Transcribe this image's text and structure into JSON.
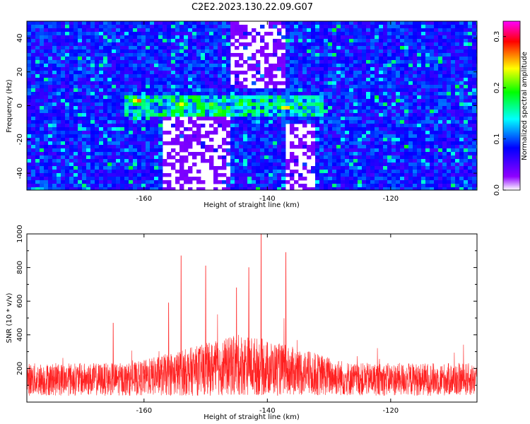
{
  "title": "C2E2.2023.130.22.09.G07",
  "chart_data": [
    {
      "type": "heatmap",
      "xlabel": "Height of straight line (km)",
      "ylabel": "Frequency (Hz)",
      "xlim": [
        -179,
        -106
      ],
      "ylim": [
        -50,
        50
      ],
      "xticks": [
        -160,
        -140,
        -120
      ],
      "yticks": [
        -40,
        -20,
        0,
        20,
        40
      ],
      "grid": false,
      "colorbar": {
        "label": "Normalized spectral amplitude",
        "range": [
          0,
          0.33
        ],
        "ticks": [
          "0.0",
          "0.1",
          "0.2",
          "0.3"
        ],
        "colors": [
          "#ffffff",
          "#8f00ff",
          "#0000ff",
          "#00ffff",
          "#00ff00",
          "#ffff00",
          "#ff0000",
          "#ff00ff"
        ]
      },
      "band": {
        "center_hz": 0,
        "half_width_hz": 5,
        "x_range": [
          -163,
          -131
        ]
      },
      "hot_spots": [
        {
          "x": -161,
          "y": 3,
          "value": 0.3
        },
        {
          "x": -154,
          "y": 0,
          "value": 0.32
        },
        {
          "x": -149,
          "y": 0,
          "value": 0.28
        },
        {
          "x": -137,
          "y": -1,
          "value": 0.29
        }
      ]
    },
    {
      "type": "line",
      "xlabel": "Height of straight line (km)",
      "ylabel": "SNR (10 * v/v)",
      "xlim": [
        -179,
        -106
      ],
      "ylim": [
        0,
        1000
      ],
      "xticks": [
        -160,
        -140,
        -120
      ],
      "yticks": [
        200,
        400,
        600,
        800,
        1000
      ],
      "grid": false,
      "series": [
        {
          "color": "#ff2020",
          "baseline_mean": 150,
          "noise_peaks": [
            {
              "x": -154,
              "value": 870
            },
            {
              "x": -150,
              "value": 810
            },
            {
              "x": -141,
              "value": 1000
            },
            {
              "x": -137,
              "value": 890
            },
            {
              "x": -143,
              "value": 800
            },
            {
              "x": -145,
              "value": 680
            },
            {
              "x": -156,
              "value": 590
            },
            {
              "x": -165,
              "value": 470
            }
          ]
        }
      ]
    }
  ]
}
